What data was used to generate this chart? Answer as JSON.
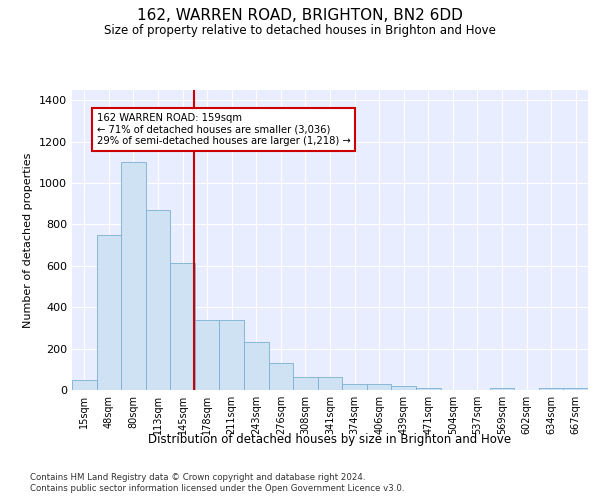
{
  "title1": "162, WARREN ROAD, BRIGHTON, BN2 6DD",
  "title2": "Size of property relative to detached houses in Brighton and Hove",
  "xlabel": "Distribution of detached houses by size in Brighton and Hove",
  "ylabel": "Number of detached properties",
  "footnote1": "Contains HM Land Registry data © Crown copyright and database right 2024.",
  "footnote2": "Contains public sector information licensed under the Open Government Licence v3.0.",
  "annotation_line1": "162 WARREN ROAD: 159sqm",
  "annotation_line2": "← 71% of detached houses are smaller (3,036)",
  "annotation_line3": "29% of semi-detached houses are larger (1,218) →",
  "bar_color": "#cfe2f3",
  "bar_edge_color": "#7bafd4",
  "vline_color": "#cc0000",
  "annotation_box_color": "#cc0000",
  "background_color": "#e8eeff",
  "categories": [
    "15sqm",
    "48sqm",
    "80sqm",
    "113sqm",
    "145sqm",
    "178sqm",
    "211sqm",
    "243sqm",
    "276sqm",
    "308sqm",
    "341sqm",
    "374sqm",
    "406sqm",
    "439sqm",
    "471sqm",
    "504sqm",
    "537sqm",
    "569sqm",
    "602sqm",
    "634sqm",
    "667sqm"
  ],
  "values": [
    50,
    750,
    1100,
    870,
    615,
    340,
    340,
    230,
    130,
    65,
    65,
    30,
    30,
    20,
    10,
    0,
    0,
    10,
    0,
    10,
    10
  ],
  "ylim": [
    0,
    1450
  ],
  "yticks": [
    0,
    200,
    400,
    600,
    800,
    1000,
    1200,
    1400
  ],
  "vline_x_index": 4.45
}
